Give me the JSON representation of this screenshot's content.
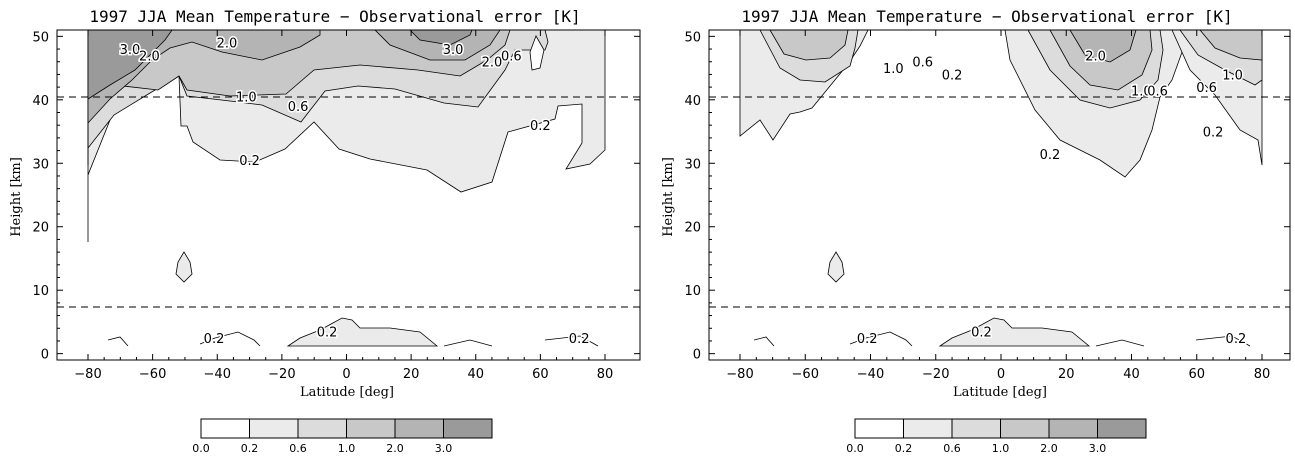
{
  "chart_data": [
    {
      "type": "contour",
      "title": "1997 JJA Mean Temperature − Observational error [K]",
      "xlabel": "Latitude [deg]",
      "ylabel": "Height [km]",
      "xlim": [
        -90,
        90
      ],
      "ylim": [
        -1,
        51
      ],
      "xticks": [
        "−80",
        "−60",
        "−40",
        "−20",
        "0",
        "20",
        "40",
        "60",
        "80"
      ],
      "yticks": [
        "0",
        "10",
        "20",
        "30",
        "40",
        "50"
      ],
      "reference_lines_km": [
        8,
        40
      ],
      "levels": [
        0.0,
        0.2,
        0.6,
        1.0,
        2.0,
        3.0
      ],
      "colorbar_labels": [
        "0.0",
        "0.2",
        "0.6",
        "1.0",
        "2.0",
        "3.0"
      ],
      "level_colors": [
        "#ffffff",
        "#ebebeb",
        "#dcdcdc",
        "#c8c8c8",
        "#b4b4b4",
        "#9a9a9a"
      ],
      "contour_labels": [
        {
          "text": "3.0",
          "lat": -67,
          "h": 48
        },
        {
          "text": "2.0",
          "lat": -61,
          "h": 47
        },
        {
          "text": "2.0",
          "lat": -37,
          "h": 49
        },
        {
          "text": "3.0",
          "lat": 33,
          "h": 48
        },
        {
          "text": "2.0",
          "lat": 45,
          "h": 46
        },
        {
          "text": "0.6",
          "lat": 51,
          "h": 47
        },
        {
          "text": "1.0",
          "lat": -31,
          "h": 40.5
        },
        {
          "text": "0.6",
          "lat": -15,
          "h": 39
        },
        {
          "text": "0.2",
          "lat": 60,
          "h": 36
        },
        {
          "text": "0.2",
          "lat": -30,
          "h": 30.5
        },
        {
          "text": "0.2",
          "lat": -41,
          "h": 2.5
        },
        {
          "text": "0.2",
          "lat": -6,
          "h": 3.5
        },
        {
          "text": "0.2",
          "lat": 72,
          "h": 2.5
        }
      ]
    },
    {
      "type": "contour",
      "title": "1997 JJA Mean Temperature − Observational error [K]",
      "xlabel": "Latitude [deg]",
      "ylabel": "Height [km]",
      "xlim": [
        -90,
        90
      ],
      "ylim": [
        -1,
        51
      ],
      "xticks": [
        "−80",
        "−60",
        "−40",
        "−20",
        "0",
        "20",
        "40",
        "60",
        "80"
      ],
      "yticks": [
        "0",
        "10",
        "20",
        "30",
        "40",
        "50"
      ],
      "reference_lines_km": [
        8,
        40
      ],
      "levels": [
        0.0,
        0.2,
        0.6,
        1.0,
        2.0,
        3.0
      ],
      "colorbar_labels": [
        "0.0",
        "0.2",
        "0.6",
        "1.0",
        "2.0",
        "3.0"
      ],
      "level_colors": [
        "#ffffff",
        "#ebebeb",
        "#dcdcdc",
        "#c8c8c8",
        "#b4b4b4",
        "#9a9a9a"
      ],
      "contour_labels": [
        {
          "text": "1.0",
          "lat": -33,
          "h": 45
        },
        {
          "text": "0.6",
          "lat": -24,
          "h": 46
        },
        {
          "text": "0.2",
          "lat": -15,
          "h": 44
        },
        {
          "text": "2.0",
          "lat": 29,
          "h": 47
        },
        {
          "text": "1.0",
          "lat": 43,
          "h": 41.5
        },
        {
          "text": "0.6",
          "lat": 48,
          "h": 41.5
        },
        {
          "text": "0.6",
          "lat": 63,
          "h": 42
        },
        {
          "text": "1.0",
          "lat": 71,
          "h": 44
        },
        {
          "text": "0.2",
          "lat": 15,
          "h": 31.5
        },
        {
          "text": "0.2",
          "lat": 65,
          "h": 35
        },
        {
          "text": "0.2",
          "lat": -41,
          "h": 2.5
        },
        {
          "text": "0.2",
          "lat": -6,
          "h": 3.5
        },
        {
          "text": "0.2",
          "lat": 72,
          "h": 2.5
        }
      ]
    }
  ]
}
